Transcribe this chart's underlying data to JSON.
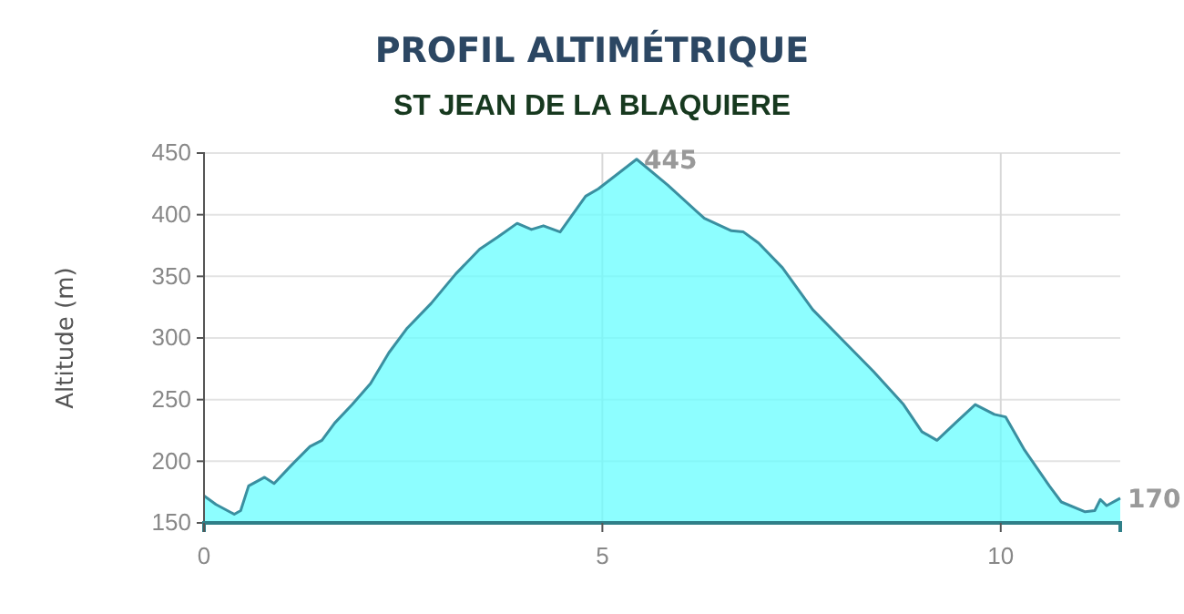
{
  "chart_data": {
    "type": "area",
    "title": "PROFIL ALTIMÉTRIQUE",
    "subtitle": "ST JEAN DE LA BLAQUIERE",
    "ylabel": "Altitude (m)",
    "x": [
      0,
      0.15,
      0.38,
      0.46,
      0.56,
      0.76,
      0.88,
      1.1,
      1.33,
      1.48,
      1.64,
      1.86,
      2.09,
      2.32,
      2.55,
      2.85,
      3.16,
      3.46,
      3.69,
      3.93,
      4.11,
      4.26,
      4.47,
      4.79,
      4.95,
      5.43,
      5.82,
      6.28,
      6.62,
      6.77,
      6.96,
      7.26,
      7.64,
      8.02,
      8.4,
      8.78,
      9.01,
      9.2,
      9.43,
      9.68,
      9.92,
      10.06,
      10.3,
      10.61,
      10.76,
      11.06,
      11.18,
      11.25,
      11.33,
      11.5
    ],
    "series": [
      {
        "color": "#3a8fa0",
        "values": [
          172,
          165,
          157,
          160,
          180,
          187,
          182,
          197,
          212,
          217,
          231,
          246,
          263,
          288,
          308,
          328,
          352,
          372,
          382,
          393,
          388,
          391,
          386,
          415,
          421,
          445,
          424,
          397,
          387,
          386,
          377,
          357,
          323,
          298,
          273,
          246,
          224,
          217,
          231,
          246,
          238,
          236,
          209,
          180,
          167,
          159,
          160,
          169,
          164,
          170
        ]
      }
    ],
    "xlim": [
      0,
      11.5
    ],
    "xticks": [
      0,
      5,
      10
    ],
    "ylim": [
      150,
      450
    ],
    "yticks": [
      150,
      200,
      250,
      300,
      350,
      400,
      450
    ],
    "grid": true,
    "annotations": [
      {
        "text": "445",
        "x": 5.43,
        "y": 445
      },
      {
        "text": "170",
        "x": 11.5,
        "y": 170
      }
    ]
  }
}
